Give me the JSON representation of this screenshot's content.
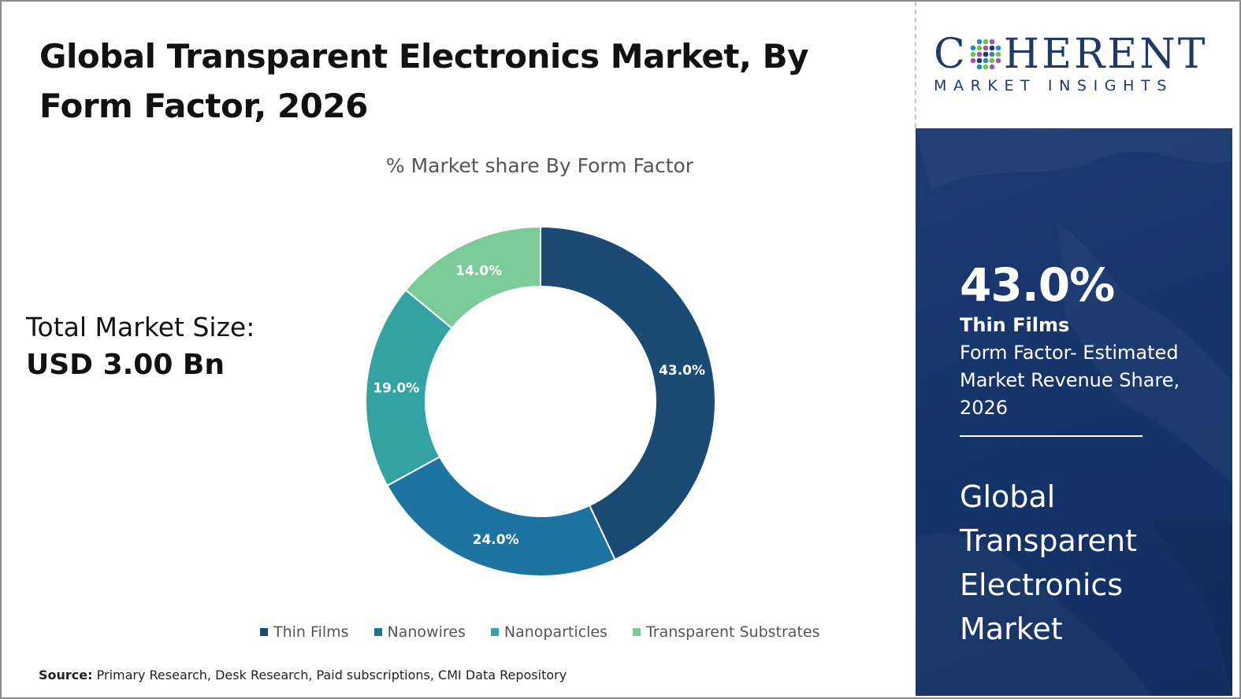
{
  "title": "Global Transparent Electronics Market, By Form Factor, 2026",
  "market_size": {
    "label": "Total Market Size:",
    "value": "USD 3.00 Bn"
  },
  "chart_data": {
    "type": "pie",
    "title": "% Market share By Form Factor",
    "donut": true,
    "categories": [
      "Thin Films",
      "Nanowires",
      "Nanoparticles",
      "Transparent Substrates"
    ],
    "values": [
      43.0,
      24.0,
      19.0,
      14.0
    ],
    "data_labels": [
      "43.0%",
      "24.0%",
      "19.0%",
      "14.0%"
    ],
    "colors": [
      "#1b4a74",
      "#1d74a1",
      "#33a2a2",
      "#7acb97"
    ],
    "legend_position": "bottom"
  },
  "source": {
    "prefix": "Source:",
    "text": " Primary Research, Desk Research, Paid subscriptions, CMI Data Repository"
  },
  "logo": {
    "main_left": "C",
    "main_right": "HERENT",
    "sub": "MARKET INSIGHTS"
  },
  "side_panel": {
    "highlight_value": "43.0%",
    "highlight_name": "Thin Films",
    "highlight_desc": "Form Factor- Estimated Market Revenue Share, 2026",
    "market_title": "Global Transparent Electronics Market",
    "background": "#1a3a70"
  }
}
